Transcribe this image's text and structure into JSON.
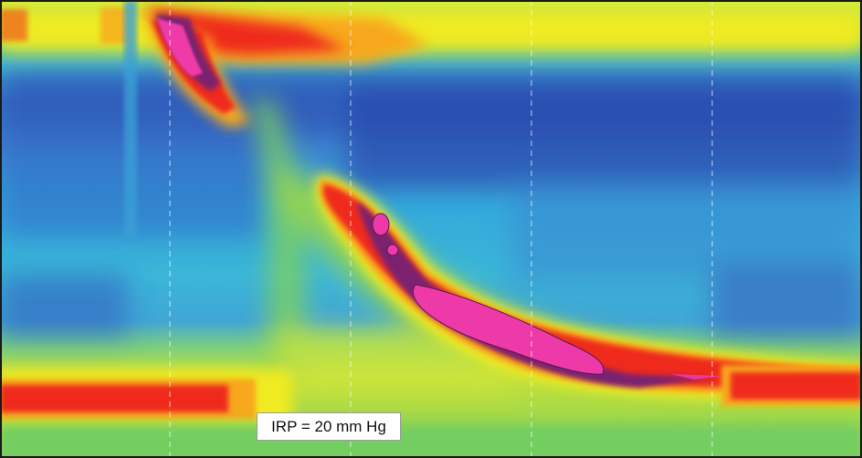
{
  "chart_data": {
    "type": "heatmap",
    "title": "",
    "xlabel": "",
    "ylabel": "",
    "annotations": [
      {
        "text": "IRP = 20 mm Hg"
      }
    ],
    "color_scale": [
      "#1d3fa8",
      "#2f6fd0",
      "#22aee8",
      "#2bc7c0",
      "#5fd06a",
      "#a8dc3a",
      "#f2ec22",
      "#f7a81c",
      "#ef2a1e",
      "#7a2070",
      "#ee3aa8"
    ],
    "features": [
      {
        "name": "upper-sphincter-band",
        "pressure_level": "high"
      },
      {
        "name": "peristaltic-contraction-wave",
        "pressure_level": "very-high"
      },
      {
        "name": "lower-sphincter-band",
        "pressure_level": "high"
      },
      {
        "name": "esophageal-body-baseline",
        "pressure_level": "low"
      }
    ],
    "grid": true
  },
  "colors": {
    "frame": "#1a1a1a",
    "label_background": "#ffffff",
    "label_border": "#9a9a9a"
  }
}
